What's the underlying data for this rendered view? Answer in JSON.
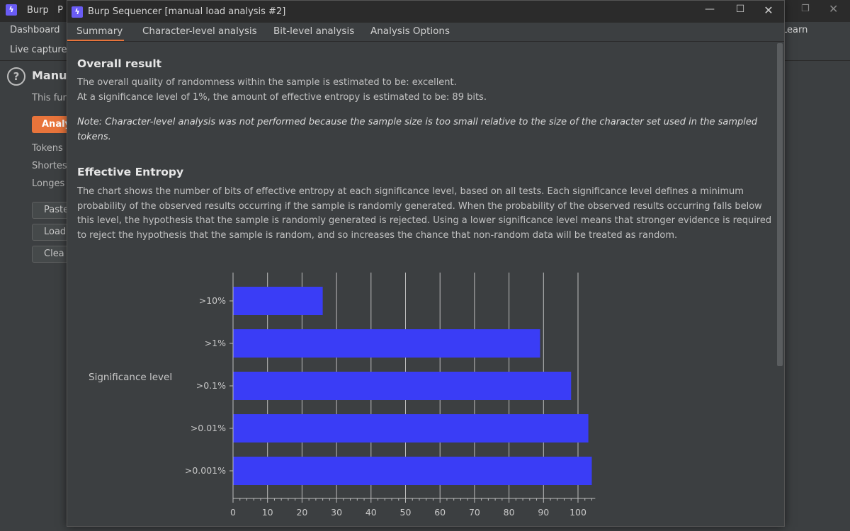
{
  "background": {
    "app_title": "Burp",
    "app_title_suffix": "P",
    "menu": {
      "left": "Dashboard",
      "right": "Learn"
    },
    "subtab": "Live capture",
    "section_title": "Manu",
    "description": "This fur",
    "analyze_label": "Analy",
    "labels": [
      "Tokens",
      "Shortes",
      "Longes"
    ],
    "buttons": [
      "Paste",
      "Load",
      "Clea"
    ]
  },
  "dialog": {
    "title": "Burp Sequencer [manual load analysis #2]",
    "tabs": [
      "Summary",
      "Character-level analysis",
      "Bit-level analysis",
      "Analysis Options"
    ],
    "active_tab": "Summary"
  },
  "summary": {
    "overall_heading": "Overall result",
    "overall_line1": "The overall quality of randomness within the sample is estimated to be: excellent.",
    "overall_line2": "At a significance level of 1%, the amount of effective entropy is estimated to be: 89 bits.",
    "note_line1": "Note: Character-level analysis was not performed because the sample size is too small relative to the size of the character set used in the sampled",
    "note_line2": "tokens.",
    "entropy_heading": "Effective Entropy",
    "entropy_line1": "The chart shows the number of bits of effective entropy at each significance level, based on all tests. Each significance level defines a minimum",
    "entropy_line2": "probability of the observed results occurring if the sample is randomly generated. When the probability of the observed results occurring falls below",
    "entropy_line3": "this level, the hypothesis that the sample is randomly generated is rejected. Using a lower significance level means that stronger evidence is required",
    "entropy_line4": "to reject the hypothesis that the sample is random, and so increases the chance that non-random data will be treated as random."
  },
  "chart_data": {
    "type": "bar",
    "orientation": "horizontal",
    "categories": [
      ">10%",
      ">1%",
      ">0.1%",
      ">0.01%",
      ">0.001%"
    ],
    "values": [
      26,
      89,
      98,
      103,
      104
    ],
    "ylabel": "Significance level",
    "xlabel": "",
    "xlim": [
      0,
      105
    ],
    "xticks": [
      0,
      10,
      20,
      30,
      40,
      50,
      60,
      70,
      80,
      90,
      100
    ],
    "grid": true,
    "bar_color": "#3a3df6"
  },
  "colors": {
    "accent": "#e8743b",
    "logo": "#6a5cf5",
    "bar": "#3a3df6"
  }
}
